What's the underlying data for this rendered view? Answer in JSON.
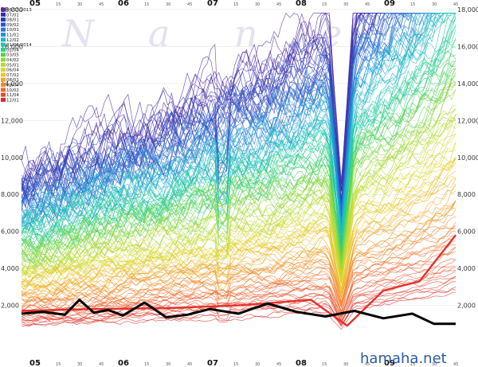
{
  "watermark": [
    "N",
    "a",
    "n",
    "e",
    "x"
  ],
  "site_label": "hamaha.net",
  "chart_data": {
    "type": "line",
    "ylim": [
      0,
      18000
    ],
    "y_ticks": [
      2000,
      4000,
      6000,
      8000,
      10000,
      12000,
      14000,
      16000,
      18000
    ],
    "y_tick_labels": [
      "2,000",
      "4,000",
      "6,000",
      "8,000",
      "10,000",
      "12,000",
      "14,000",
      "16,000",
      "18,000"
    ],
    "hour_labels_top": [
      "05",
      "06",
      "07",
      "08",
      "09"
    ],
    "hour_labels_bottom": [
      "05",
      "06",
      "07",
      "08",
      "09"
    ],
    "minute_labels": [
      "15",
      "30",
      "45"
    ],
    "legend": [
      "06/03/2013",
      "07/01",
      "08/01",
      "09/02",
      "10/01",
      "11/01",
      "12/02",
      "01/06/2014",
      "02/04",
      "03/05",
      "04/02",
      "05/01",
      "06/04",
      "07/02",
      "08/01",
      "09/04",
      "10/02",
      "11/04",
      "12/01"
    ],
    "legend_colors": [
      "#5a2a9a",
      "#3a2aa8",
      "#2a3ab8",
      "#2a55c8",
      "#2a7ad0",
      "#1a9ad8",
      "#1ab8c8",
      "#1ac8a8",
      "#2ad080",
      "#5ad050",
      "#8ad83a",
      "#b8d82a",
      "#d8d82a",
      "#e8c82a",
      "#f0a82a",
      "#f08a2a",
      "#f06a2a",
      "#e84a2a",
      "#d82a2a"
    ],
    "highlight_series": {
      "color": "#000000",
      "x": [
        0,
        3,
        6,
        8,
        10,
        12,
        14,
        17,
        20,
        23,
        26,
        30,
        34,
        38,
        42,
        46,
        50,
        54,
        57,
        60
      ],
      "values": [
        1550,
        1650,
        1500,
        2300,
        1600,
        1750,
        1450,
        2150,
        1350,
        1500,
        1800,
        1550,
        2100,
        1650,
        1400,
        1700,
        1300,
        1550,
        1000,
        1000
      ]
    },
    "bold_red_series": {
      "color": "#e8302a",
      "x": [
        0,
        10,
        20,
        30,
        40,
        45,
        50,
        55,
        60
      ],
      "values": [
        1700,
        1800,
        1850,
        2000,
        2300,
        900,
        2800,
        3300,
        5800
      ]
    }
  }
}
